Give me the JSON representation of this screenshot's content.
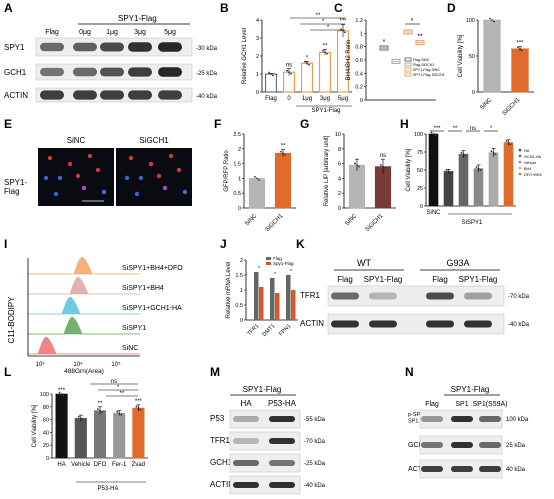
{
  "panels": [
    "A",
    "B",
    "C",
    "D",
    "E",
    "F",
    "G",
    "H",
    "I",
    "J",
    "K",
    "L",
    "M",
    "N"
  ],
  "panelA": {
    "header": "SPY1-Flag",
    "lanes": [
      "Flag",
      "0μg",
      "1μg",
      "3μg",
      "5μg"
    ],
    "rows": [
      {
        "label": "SPY1",
        "size": "-30 kDa"
      },
      {
        "label": "GCH1",
        "size": "-25 kDa"
      },
      {
        "label": "ACTIN",
        "size": "-40 kDa"
      }
    ]
  },
  "panelE": {
    "label": "SPY1-\nFlag",
    "cols": [
      "SiNC",
      "SiGCH1"
    ]
  },
  "panelI": {
    "ylabel": "C11-BODIPY",
    "xlabel": "488Grn(Area)",
    "ticks": [
      "10³",
      "10⁴",
      "10⁵"
    ],
    "tracks": [
      {
        "label": "SiSPY1+BH4+DFO",
        "color": "#f1a460"
      },
      {
        "label": "SiSPY1+BH4",
        "color": "#d9a6a6"
      },
      {
        "label": "SiSPY1+GCH1-HA",
        "color": "#56c2d9"
      },
      {
        "label": "SiSPY1",
        "color": "#5aa354"
      },
      {
        "label": "SiNC",
        "color": "#ef6f6f"
      }
    ]
  },
  "panelK": {
    "groups": [
      "WT",
      "G93A"
    ],
    "lanes": [
      "Flag",
      "SPY1-Flag",
      "Flag",
      "SPY1-Flag"
    ],
    "rows": [
      {
        "label": "TFR1",
        "size": "-70 kDa"
      },
      {
        "label": "ACTIN",
        "size": "-40 kDa"
      }
    ]
  },
  "panelM": {
    "header": "SPY1-Flag",
    "lanes": [
      "HA",
      "P53-HA"
    ],
    "rows": [
      {
        "label": "P53",
        "size": "-55 kDa"
      },
      {
        "label": "TFR1",
        "size": "-70 kDa"
      },
      {
        "label": "GCH1",
        "size": "-25 kDa"
      },
      {
        "label": "ACTIN",
        "size": "-40 kDa"
      }
    ]
  },
  "panelN": {
    "header": "SPY1-Flag",
    "lanes": [
      "Flag",
      "SP1",
      "SP1(S59A)"
    ],
    "rows": [
      {
        "label": "p-SP1\nSP1",
        "size": "100 kDa"
      },
      {
        "label": "GCH1",
        "size": "25 kDa"
      },
      {
        "label": "ACTIN",
        "size": "40 kDa"
      }
    ]
  },
  "chart_data": [
    {
      "panel": "B",
      "type": "bar",
      "ylabel": "Relative GCH1 Level",
      "header": "SPY1-Flag",
      "categories": [
        "Flag",
        "0",
        "1μg",
        "3μg",
        "5μg"
      ],
      "values": [
        1.0,
        1.1,
        1.6,
        2.2,
        3.4
      ],
      "errors": [
        0.03,
        0.2,
        0.1,
        0.15,
        0.35
      ],
      "ylim": [
        0,
        4
      ],
      "yticks": [
        0,
        1,
        2,
        3,
        4
      ],
      "sig": [
        "",
        "ns",
        "*",
        "**",
        "***"
      ],
      "color": "#f08a3c",
      "first_color": "#555"
    },
    {
      "panel": "C",
      "type": "scatter",
      "ylabel": "BH4/BH2 Ratio",
      "legend": [
        "Flag-SiNC",
        "Flag-SiGCH1",
        "SPY1-Flag-SiNC",
        "SPY1-Flag-SiGCH1"
      ],
      "ylim": [
        0,
        1.2
      ],
      "yticks": [
        0,
        0.2,
        0.4,
        0.6,
        0.8,
        1.0,
        1.2
      ],
      "series": [
        {
          "x": 1,
          "y": 0.78,
          "color": "#555",
          "sig": "*"
        },
        {
          "x": 2,
          "y": 0.58,
          "color": "#999",
          "sig": ""
        },
        {
          "x": 3,
          "y": 1.02,
          "color": "#f08a3c",
          "sig": ""
        },
        {
          "x": 4,
          "y": 0.86,
          "color": "#f08a3c",
          "sig": "**"
        }
      ]
    },
    {
      "panel": "D",
      "type": "bar",
      "ylabel": "Cell Viability [%]",
      "categories": [
        "SiNC",
        "SiGCH1"
      ],
      "values": [
        100,
        60
      ],
      "errors": [
        0,
        3
      ],
      "ylim": [
        0,
        100
      ],
      "yticks": [
        0,
        50,
        100
      ],
      "sig": [
        "",
        "***"
      ],
      "colors": [
        "#b5b5b5",
        "#e06a2c"
      ]
    },
    {
      "panel": "F",
      "type": "bar",
      "ylabel": "GFP/RFP Ratio",
      "categories": [
        "SiNC",
        "SiGCH1"
      ],
      "values": [
        1.0,
        1.85
      ],
      "errors": [
        0,
        0.12
      ],
      "ylim": [
        0,
        2.5
      ],
      "yticks": [
        0.0,
        0.5,
        1.0,
        1.5,
        2.0,
        2.5
      ],
      "sig": [
        "",
        "**"
      ],
      "colors": [
        "#b5b5b5",
        "#e06a2c"
      ]
    },
    {
      "panel": "G",
      "type": "bar",
      "ylabel": "Relative LIP [arbitrary unit]",
      "categories": [
        "SiNC",
        "SiGCH1"
      ],
      "values": [
        5.8,
        5.6
      ],
      "errors": [
        0.8,
        1.0
      ],
      "ylim": [
        0,
        10
      ],
      "yticks": [
        0,
        2,
        4,
        6,
        8,
        10
      ],
      "sig": [
        "",
        "ns"
      ],
      "colors": [
        "#b5b5b5",
        "#7a3a3a"
      ]
    },
    {
      "panel": "H",
      "type": "bar",
      "ylabel": "Cell Viability [%]",
      "categories": [
        "SiNC",
        "",
        "",
        "",
        "",
        ""
      ],
      "group_label": "SiSPY1",
      "values": [
        100,
        48,
        72,
        52,
        74,
        88
      ],
      "errors": [
        0,
        3,
        5,
        5,
        6,
        4
      ],
      "ylim": [
        0,
        100
      ],
      "yticks": [
        0,
        25,
        50,
        75,
        100
      ],
      "colors": [
        "#111",
        "#444",
        "#666",
        "#888",
        "#aaa",
        "#e06a2c"
      ],
      "legend": [
        "HA",
        "GCH1-HA",
        "Vehicle",
        "BH4",
        "DFO+BH4"
      ],
      "brackets": [
        "***",
        "**",
        "ns",
        "*"
      ]
    },
    {
      "panel": "J",
      "type": "bar",
      "ylabel": "Relative mRNA Level",
      "categories": [
        "TFR1",
        "DMT1",
        "FPN1"
      ],
      "series": [
        {
          "name": "Flag",
          "values": [
            1.6,
            1.4,
            1.5
          ],
          "color": "#666"
        },
        {
          "name": "Spy1-Flag",
          "values": [
            1.1,
            0.9,
            1.0
          ],
          "color": "#d9552a"
        }
      ],
      "ylim": [
        0,
        2.0
      ],
      "yticks": [
        0.0,
        0.5,
        1.0,
        1.5,
        2.0
      ],
      "sig": [
        "*",
        "*",
        "*"
      ]
    },
    {
      "panel": "L",
      "type": "bar",
      "ylabel": "Cell Viability [%]",
      "categories": [
        "HA",
        "Vehicle",
        "DFO",
        "Fer-1",
        "Zvad"
      ],
      "group_label": "P53-HA",
      "values": [
        100,
        62,
        74,
        70,
        78
      ],
      "errors": [
        0,
        5,
        6,
        4,
        5
      ],
      "ylim": [
        0,
        100
      ],
      "yticks": [
        0,
        20,
        40,
        60,
        80,
        100
      ],
      "colors": [
        "#111",
        "#555",
        "#777",
        "#999",
        "#e06a2c"
      ],
      "sig": [
        "***",
        "",
        "**",
        "",
        "***"
      ],
      "brackets": [
        "ns",
        "*",
        "**"
      ]
    }
  ]
}
